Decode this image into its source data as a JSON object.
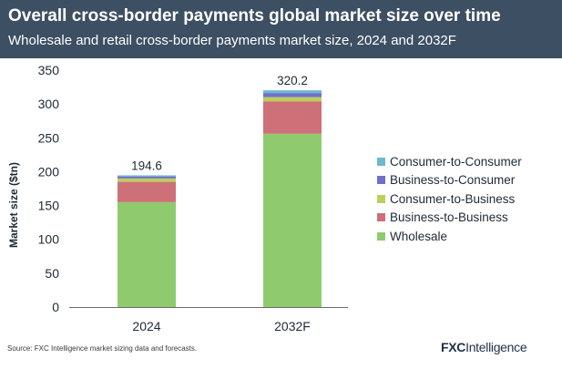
{
  "header": {
    "title": "Overall cross-border payments global market size over time",
    "subtitle": "Wholesale and retail cross-border payments market size, 2024 and 2032F"
  },
  "footer": {
    "source": "Source: FXC Intelligence market sizing data and forecasts.",
    "logo_part1": "FXC",
    "logo_part2": "Intelligence"
  },
  "chart_data": {
    "type": "bar",
    "stacked": true,
    "categories": [
      "2024",
      "2032F"
    ],
    "totals": [
      "194.6",
      "320.2"
    ],
    "ylabel": "Market size ($tn)",
    "ylim": [
      0,
      350
    ],
    "yticks": [
      0,
      50,
      100,
      150,
      200,
      250,
      300,
      350
    ],
    "grid": false,
    "legend_position": "right",
    "series": [
      {
        "name": "Wholesale",
        "color": "#8fcb6e",
        "values": [
          155,
          256
        ]
      },
      {
        "name": "Business-to-Business",
        "color": "#cd7078",
        "values": [
          30,
          48
        ]
      },
      {
        "name": "Consumer-to-Business",
        "color": "#bccf5a",
        "values": [
          5,
          6.2
        ]
      },
      {
        "name": "Business-to-Consumer",
        "color": "#6f6fcc",
        "values": [
          3,
          6
        ]
      },
      {
        "name": "Consumer-to-Consumer",
        "color": "#6db9cf",
        "values": [
          1.6,
          4
        ]
      }
    ]
  }
}
